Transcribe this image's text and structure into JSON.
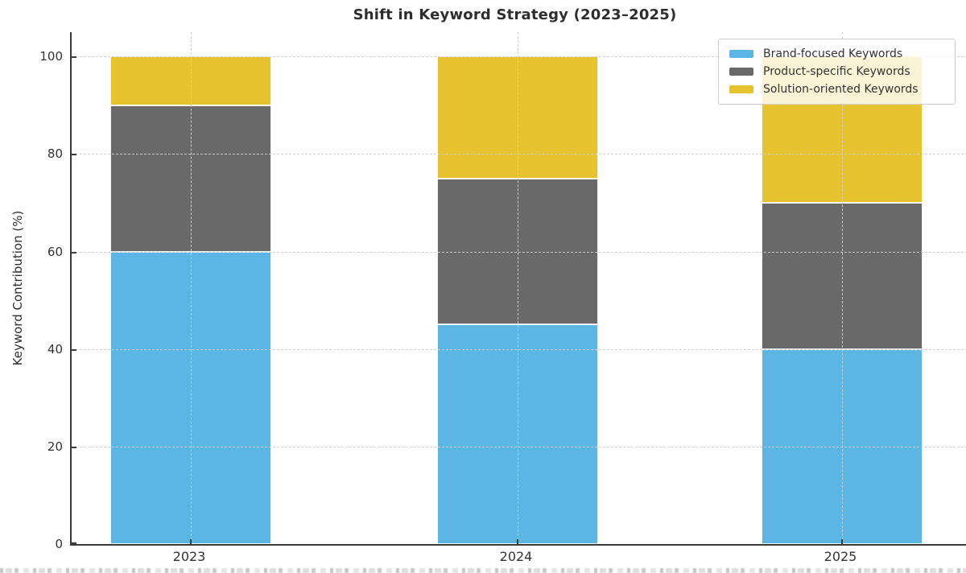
{
  "chart_data": {
    "type": "bar",
    "stacked": true,
    "title": "Shift in Keyword Strategy (2023–2025)",
    "xlabel": "",
    "ylabel": "Keyword Contribution (%)",
    "categories": [
      "2023",
      "2024",
      "2025"
    ],
    "series": [
      {
        "name": "Brand-focused Keywords",
        "color": "#5BB6E4",
        "values": [
          60,
          45,
          40
        ]
      },
      {
        "name": "Product-specific Keywords",
        "color": "#696969",
        "values": [
          30,
          30,
          30
        ]
      },
      {
        "name": "Solution-oriented Keywords",
        "color": "#E6C32E",
        "values": [
          10,
          25,
          30
        ]
      }
    ],
    "yticks": [
      0,
      20,
      40,
      60,
      80,
      100
    ],
    "ylim": [
      0,
      105
    ],
    "grid": "dashed, horizontal and vertical, drawn over bars",
    "legend_position": "upper right",
    "bar_edge_color": "#FFFFFF",
    "axis_color": "#3A3A3A",
    "text_color": "#333333",
    "grid_color": "#CDCDCD"
  }
}
